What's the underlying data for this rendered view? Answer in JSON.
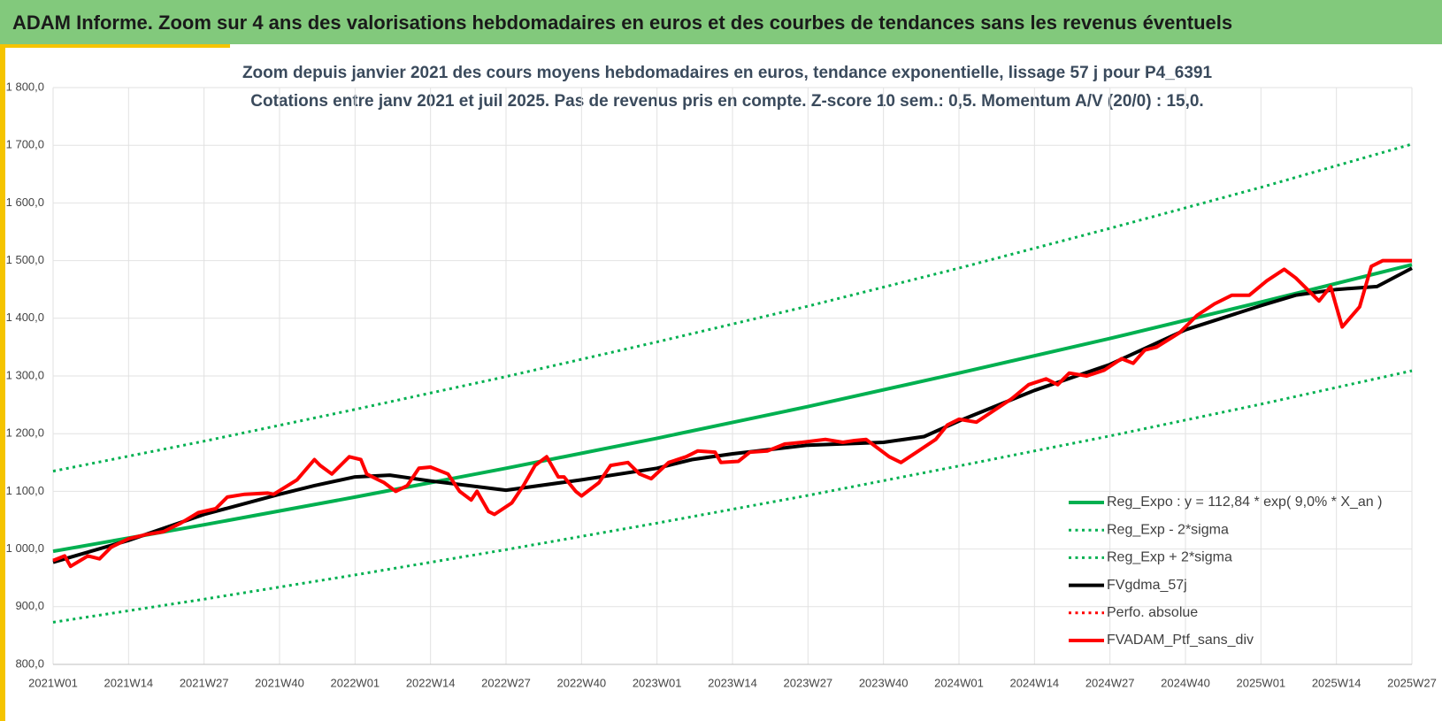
{
  "header": {
    "title": "ADAM Informe. Zoom sur 4 ans des valorisations hebdomadaires en euros et des courbes de tendances sans les revenus éventuels"
  },
  "chart_data": {
    "type": "line",
    "title": "Zoom depuis janvier 2021 des cours moyens hebdomadaires  en euros, tendance exponentielle, lissage 57 j pour P4_6391",
    "subtitle": "Cotations entre janv 2021 et juil 2025. Pas de revenus pris en compte. Z-score 10 sem.: 0,5. Momentum A/V (20/0) : 15,0.",
    "xlim": [
      0,
      234
    ],
    "xticks": [
      {
        "value": 0,
        "label": "2021W01"
      },
      {
        "value": 13,
        "label": "2021W14"
      },
      {
        "value": 26,
        "label": "2021W27"
      },
      {
        "value": 39,
        "label": "2021W40"
      },
      {
        "value": 52,
        "label": "2022W01"
      },
      {
        "value": 65,
        "label": "2022W14"
      },
      {
        "value": 78,
        "label": "2022W27"
      },
      {
        "value": 91,
        "label": "2022W40"
      },
      {
        "value": 104,
        "label": "2023W01"
      },
      {
        "value": 117,
        "label": "2023W14"
      },
      {
        "value": 130,
        "label": "2023W27"
      },
      {
        "value": 143,
        "label": "2023W40"
      },
      {
        "value": 156,
        "label": "2024W01"
      },
      {
        "value": 169,
        "label": "2024W14"
      },
      {
        "value": 182,
        "label": "2024W27"
      },
      {
        "value": 195,
        "label": "2024W40"
      },
      {
        "value": 208,
        "label": "2025W01"
      },
      {
        "value": 221,
        "label": "2025W14"
      },
      {
        "value": 234,
        "label": "2025W27"
      }
    ],
    "ylim": [
      800,
      1800
    ],
    "yticks": [
      {
        "value": 800,
        "label": "800,0"
      },
      {
        "value": 900,
        "label": "900,0"
      },
      {
        "value": 1000,
        "label": "1 000,0"
      },
      {
        "value": 1100,
        "label": "1 100,0"
      },
      {
        "value": 1200,
        "label": "1 200,0"
      },
      {
        "value": 1300,
        "label": "1 300,0"
      },
      {
        "value": 1400,
        "label": "1 400,0"
      },
      {
        "value": 1500,
        "label": "1 500,0"
      },
      {
        "value": 1600,
        "label": "1 600,0"
      },
      {
        "value": 1700,
        "label": "1 700,0"
      },
      {
        "value": 1800,
        "label": "1 800,0"
      }
    ],
    "grid": true,
    "legend": "bottom-right",
    "series": [
      {
        "name": "Reg_Expo : y = 112,84 * exp( 9,0% *  X_an )",
        "color": "#00b050",
        "dotted": false,
        "x": [
          0,
          26,
          52,
          78,
          104,
          130,
          156,
          182,
          208,
          234
        ],
        "values": [
          996,
          1042,
          1090,
          1140,
          1192,
          1247,
          1305,
          1365,
          1428,
          1493
        ]
      },
      {
        "name": "Reg_Exp - 2*sigma",
        "color": "#00b050",
        "dotted": true,
        "x": [
          0,
          26,
          52,
          78,
          104,
          130,
          156,
          182,
          208,
          234
        ],
        "values": [
          873,
          913,
          955,
          999,
          1045,
          1093,
          1144,
          1196,
          1251,
          1309
        ]
      },
      {
        "name": "Reg_Exp + 2*sigma",
        "color": "#00b050",
        "dotted": true,
        "x": [
          0,
          26,
          52,
          78,
          104,
          130,
          156,
          182,
          208,
          234
        ],
        "values": [
          1135,
          1187,
          1242,
          1299,
          1359,
          1421,
          1487,
          1556,
          1627,
          1702
        ]
      },
      {
        "name": "FVgdma_57j",
        "color": "#000000",
        "dotted": false,
        "x": [
          0,
          13,
          26,
          39,
          45,
          52,
          58,
          65,
          78,
          91,
          104,
          110,
          117,
          130,
          143,
          150,
          156,
          169,
          182,
          195,
          208,
          214,
          221,
          228,
          234
        ],
        "values": [
          977,
          1015,
          1060,
          1095,
          1110,
          1125,
          1128,
          1118,
          1102,
          1120,
          1140,
          1155,
          1165,
          1180,
          1185,
          1195,
          1222,
          1275,
          1320,
          1380,
          1422,
          1440,
          1450,
          1455,
          1487
        ]
      },
      {
        "name": "Perfo. absolue",
        "color": "#ff0000",
        "dotted": true,
        "x": [],
        "values": []
      },
      {
        "name": "FVADAM_Ptf_sans_div",
        "color": "#ff0000",
        "dotted": false,
        "x": [
          0,
          2,
          3,
          6,
          8,
          10,
          13,
          16,
          19,
          22,
          25,
          28,
          30,
          33,
          37,
          38,
          42,
          45,
          46,
          48,
          49,
          51,
          53,
          54,
          56,
          57,
          59,
          61,
          63,
          65,
          68,
          70,
          72,
          73,
          75,
          76,
          79,
          81,
          83,
          85,
          87,
          88,
          90,
          91,
          94,
          96,
          99,
          101,
          103,
          106,
          109,
          111,
          114,
          115,
          118,
          120,
          123,
          126,
          129,
          133,
          136,
          138,
          140,
          144,
          146,
          149,
          152,
          154,
          156,
          159,
          162,
          165,
          168,
          171,
          173,
          175,
          178,
          181,
          184,
          186,
          188,
          190,
          194,
          197,
          200,
          203,
          206,
          209,
          212,
          214,
          218,
          220,
          222,
          225,
          227,
          229,
          234
        ],
        "values": [
          980,
          988,
          970,
          988,
          983,
          1003,
          1018,
          1025,
          1030,
          1045,
          1063,
          1070,
          1090,
          1095,
          1097,
          1095,
          1120,
          1155,
          1145,
          1130,
          1140,
          1160,
          1155,
          1130,
          1120,
          1115,
          1100,
          1110,
          1140,
          1142,
          1130,
          1100,
          1085,
          1100,
          1065,
          1060,
          1080,
          1110,
          1145,
          1160,
          1125,
          1125,
          1100,
          1092,
          1115,
          1145,
          1150,
          1130,
          1122,
          1150,
          1160,
          1170,
          1168,
          1150,
          1152,
          1168,
          1170,
          1182,
          1185,
          1190,
          1185,
          1188,
          1190,
          1160,
          1150,
          1170,
          1190,
          1215,
          1225,
          1220,
          1240,
          1260,
          1285,
          1295,
          1285,
          1305,
          1300,
          1310,
          1330,
          1322,
          1345,
          1350,
          1375,
          1405,
          1425,
          1440,
          1440,
          1465,
          1485,
          1470,
          1430,
          1455,
          1385,
          1420,
          1490,
          1500,
          1500
        ]
      }
    ]
  }
}
